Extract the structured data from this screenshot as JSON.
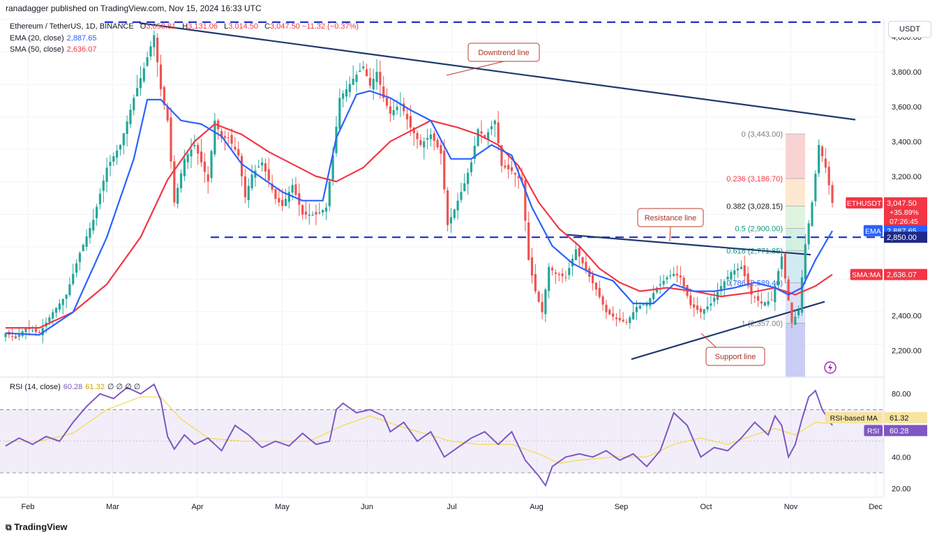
{
  "header": {
    "publisher": "ranadagger published on TradingView.com, Nov 15, 2024 16:33 UTC"
  },
  "legend": {
    "symbol": "Ethereum / TetherUS, 1D, BINANCE",
    "ohlc": {
      "o_label": "O",
      "o": "3,058.81",
      "h_label": "H",
      "h": "3,131.06",
      "l_label": "L",
      "l": "3,014.50",
      "c_label": "C",
      "c": "3,047.50",
      "change": "−11.32 (−0.37%)"
    },
    "ema_label": "EMA (20, close)",
    "ema_value": "2,887.65",
    "sma_label": "SMA (50, close)",
    "sma_value": "2,636.07",
    "rsi_label": "RSI (14, close)",
    "rsi_value": "60.28",
    "rsi_extra": "61.32",
    "rsi_symbols": "∅ ∅ ∅ ∅"
  },
  "price_axis": {
    "currency": "USDT",
    "ticks": [
      "4,000.00",
      "3,800.00",
      "3,600.00",
      "3,400.00",
      "3,200.00",
      "2,400.00",
      "2,200.00"
    ],
    "tick_values": [
      4000,
      3800,
      3600,
      3400,
      3200,
      2400,
      2200
    ]
  },
  "price_tags": [
    {
      "label": "ETHUSDT",
      "value": "3,047.50",
      "extra1": "+35.89%",
      "extra2": "07:26:45",
      "price": 3047.5,
      "color": "#f23645"
    },
    {
      "label": "EMA",
      "value": "2,887.65",
      "price": 2887.65,
      "color": "#2962ff"
    },
    {
      "label": "",
      "value": "2,850.00",
      "price": 2850,
      "color": "#1e2a87"
    },
    {
      "label": "SMA:MA",
      "value": "2,636.07",
      "price": 2636.07,
      "color": "#f23645"
    }
  ],
  "rsi_axis": {
    "ticks": [
      "80.00",
      "40.00",
      "20.00"
    ],
    "tick_values": [
      80,
      40,
      20
    ],
    "tags": [
      {
        "label": "RSI-based MA",
        "value": "61.32",
        "rsi": 61.32,
        "color": "#f7e4a0",
        "text": "#131722"
      },
      {
        "label": "RSI",
        "value": "60.28",
        "rsi": 60.28,
        "color": "#7e57c2",
        "text": "#ffffff"
      }
    ]
  },
  "time_axis": {
    "labels": [
      "Feb",
      "Mar",
      "Apr",
      "May",
      "Jun",
      "Jul",
      "Aug",
      "Sep",
      "Oct",
      "Nov",
      "Dec"
    ]
  },
  "annotations": {
    "downtrend": "Downtrend line",
    "resistance": "Resistance line",
    "support": "Support line"
  },
  "fib": [
    {
      "ratio": "0",
      "price": 3443.0,
      "text": "0 (3,443.00)"
    },
    {
      "ratio": "0.236",
      "price": 3186.7,
      "text": "0.236 (3,186.70)"
    },
    {
      "ratio": "0.382",
      "price": 3028.15,
      "text": "0.382 (3,028.15)"
    },
    {
      "ratio": "0.5",
      "price": 2900.0,
      "text": "0.5 (2,900.00)"
    },
    {
      "ratio": "0.618",
      "price": 2771.85,
      "text": "0.618 (2,771.85)"
    },
    {
      "ratio": "0.786",
      "price": 2589.4,
      "text": "0.786 (2,589.40)"
    },
    {
      "ratio": "1",
      "price": 2357.0,
      "text": "1 (2,357.00)"
    }
  ],
  "brand": "TradingView",
  "colors": {
    "up": "#26a69a",
    "down": "#ef5350",
    "ema": "#2962ff",
    "sma": "#f23645",
    "rsi": "#7e57c2",
    "rsi_ma": "#f5d94a",
    "trend": "#1e3a6e",
    "level": "#1e2acc"
  },
  "chart_data": {
    "type": "candlestick",
    "title": "Ethereum / TetherUS, 1D, BINANCE",
    "y_range": [
      2050,
      4100
    ],
    "rsi_range": [
      15,
      90
    ],
    "months": [
      "Feb",
      "Mar",
      "Apr",
      "May",
      "Jun",
      "Jul",
      "Aug",
      "Sep",
      "Oct",
      "Nov",
      "Dec"
    ],
    "price_anchors": [
      [
        0,
        2300
      ],
      [
        3,
        2270
      ],
      [
        6,
        2330
      ],
      [
        10,
        2300
      ],
      [
        14,
        2420
      ],
      [
        18,
        2520
      ],
      [
        22,
        2760
      ],
      [
        26,
        2950
      ],
      [
        30,
        3250
      ],
      [
        34,
        3380
      ],
      [
        38,
        3650
      ],
      [
        41,
        3820
      ],
      [
        44,
        4010
      ],
      [
        46,
        3700
      ],
      [
        48,
        3520
      ],
      [
        50,
        3050
      ],
      [
        53,
        3300
      ],
      [
        56,
        3380
      ],
      [
        58,
        3280
      ],
      [
        60,
        3170
      ],
      [
        62,
        3520
      ],
      [
        64,
        3420
      ],
      [
        66,
        3420
      ],
      [
        69,
        3320
      ],
      [
        71,
        3080
      ],
      [
        73,
        3210
      ],
      [
        76,
        3280
      ],
      [
        80,
        3070
      ],
      [
        82,
        3030
      ],
      [
        85,
        3150
      ],
      [
        88,
        2980
      ],
      [
        92,
        2980
      ],
      [
        95,
        3020
      ],
      [
        97,
        3320
      ],
      [
        99,
        3650
      ],
      [
        101,
        3700
      ],
      [
        103,
        3760
      ],
      [
        106,
        3830
      ],
      [
        108,
        3720
      ],
      [
        110,
        3800
      ],
      [
        112,
        3650
      ],
      [
        114,
        3560
      ],
      [
        117,
        3620
      ],
      [
        120,
        3480
      ],
      [
        123,
        3380
      ],
      [
        126,
        3440
      ],
      [
        129,
        3330
      ],
      [
        131,
        2920
      ],
      [
        133,
        3010
      ],
      [
        136,
        3160
      ],
      [
        138,
        3280
      ],
      [
        140,
        3470
      ],
      [
        142,
        3420
      ],
      [
        145,
        3520
      ],
      [
        147,
        3260
      ],
      [
        150,
        3230
      ],
      [
        153,
        3170
      ],
      [
        155,
        2720
      ],
      [
        157,
        2540
      ],
      [
        159,
        2420
      ],
      [
        161,
        2680
      ],
      [
        163,
        2640
      ],
      [
        166,
        2620
      ],
      [
        169,
        2780
      ],
      [
        172,
        2660
      ],
      [
        175,
        2550
      ],
      [
        178,
        2420
      ],
      [
        181,
        2380
      ],
      [
        184,
        2360
      ],
      [
        187,
        2450
      ],
      [
        190,
        2470
      ],
      [
        193,
        2560
      ],
      [
        196,
        2620
      ],
      [
        198,
        2640
      ],
      [
        200,
        2620
      ],
      [
        203,
        2460
      ],
      [
        206,
        2420
      ],
      [
        209,
        2470
      ],
      [
        212,
        2570
      ],
      [
        215,
        2650
      ],
      [
        218,
        2680
      ],
      [
        221,
        2520
      ],
      [
        224,
        2470
      ],
      [
        227,
        2490
      ],
      [
        230,
        2740
      ],
      [
        233,
        2360
      ],
      [
        235,
        2430
      ],
      [
        237,
        2810
      ],
      [
        239,
        3050
      ],
      [
        241,
        3380
      ],
      [
        243,
        3250
      ],
      [
        245,
        3047
      ]
    ],
    "ema_anchors": [
      [
        0,
        2300
      ],
      [
        10,
        2290
      ],
      [
        20,
        2420
      ],
      [
        30,
        2850
      ],
      [
        38,
        3300
      ],
      [
        42,
        3640
      ],
      [
        46,
        3640
      ],
      [
        52,
        3520
      ],
      [
        58,
        3500
      ],
      [
        64,
        3430
      ],
      [
        70,
        3270
      ],
      [
        76,
        3190
      ],
      [
        82,
        3110
      ],
      [
        88,
        3060
      ],
      [
        94,
        3060
      ],
      [
        98,
        3420
      ],
      [
        104,
        3670
      ],
      [
        108,
        3690
      ],
      [
        114,
        3650
      ],
      [
        120,
        3580
      ],
      [
        126,
        3520
      ],
      [
        132,
        3300
      ],
      [
        138,
        3300
      ],
      [
        144,
        3380
      ],
      [
        150,
        3320
      ],
      [
        156,
        3020
      ],
      [
        162,
        2800
      ],
      [
        168,
        2700
      ],
      [
        174,
        2640
      ],
      [
        180,
        2600
      ],
      [
        186,
        2470
      ],
      [
        192,
        2470
      ],
      [
        198,
        2580
      ],
      [
        204,
        2540
      ],
      [
        210,
        2540
      ],
      [
        216,
        2560
      ],
      [
        222,
        2590
      ],
      [
        228,
        2560
      ],
      [
        232,
        2520
      ],
      [
        236,
        2560
      ],
      [
        240,
        2720
      ],
      [
        245,
        2887
      ]
    ],
    "sma_anchors": [
      [
        0,
        2330
      ],
      [
        10,
        2330
      ],
      [
        20,
        2420
      ],
      [
        30,
        2580
      ],
      [
        40,
        2850
      ],
      [
        48,
        3180
      ],
      [
        56,
        3400
      ],
      [
        62,
        3500
      ],
      [
        70,
        3440
      ],
      [
        78,
        3340
      ],
      [
        86,
        3260
      ],
      [
        92,
        3200
      ],
      [
        98,
        3170
      ],
      [
        106,
        3250
      ],
      [
        114,
        3400
      ],
      [
        120,
        3460
      ],
      [
        126,
        3520
      ],
      [
        134,
        3480
      ],
      [
        140,
        3440
      ],
      [
        146,
        3380
      ],
      [
        152,
        3260
      ],
      [
        158,
        3050
      ],
      [
        164,
        2900
      ],
      [
        170,
        2800
      ],
      [
        176,
        2670
      ],
      [
        182,
        2590
      ],
      [
        188,
        2540
      ],
      [
        196,
        2560
      ],
      [
        204,
        2540
      ],
      [
        212,
        2510
      ],
      [
        220,
        2530
      ],
      [
        228,
        2560
      ],
      [
        234,
        2520
      ],
      [
        240,
        2570
      ],
      [
        245,
        2636
      ]
    ],
    "rsi_anchors": [
      [
        0,
        47
      ],
      [
        4,
        52
      ],
      [
        8,
        48
      ],
      [
        12,
        53
      ],
      [
        16,
        50
      ],
      [
        20,
        62
      ],
      [
        24,
        72
      ],
      [
        28,
        80
      ],
      [
        32,
        77
      ],
      [
        36,
        84
      ],
      [
        40,
        80
      ],
      [
        44,
        86
      ],
      [
        46,
        76
      ],
      [
        48,
        53
      ],
      [
        50,
        45
      ],
      [
        53,
        54
      ],
      [
        56,
        48
      ],
      [
        60,
        52
      ],
      [
        64,
        44
      ],
      [
        68,
        60
      ],
      [
        72,
        54
      ],
      [
        76,
        46
      ],
      [
        80,
        50
      ],
      [
        84,
        47
      ],
      [
        88,
        55
      ],
      [
        92,
        48
      ],
      [
        96,
        50
      ],
      [
        98,
        70
      ],
      [
        100,
        74
      ],
      [
        104,
        68
      ],
      [
        108,
        70
      ],
      [
        112,
        66
      ],
      [
        114,
        56
      ],
      [
        118,
        62
      ],
      [
        122,
        50
      ],
      [
        126,
        56
      ],
      [
        130,
        40
      ],
      [
        134,
        46
      ],
      [
        138,
        52
      ],
      [
        142,
        56
      ],
      [
        146,
        48
      ],
      [
        150,
        56
      ],
      [
        154,
        38
      ],
      [
        158,
        28
      ],
      [
        160,
        22
      ],
      [
        162,
        34
      ],
      [
        166,
        40
      ],
      [
        170,
        42
      ],
      [
        174,
        40
      ],
      [
        178,
        44
      ],
      [
        182,
        38
      ],
      [
        186,
        42
      ],
      [
        190,
        34
      ],
      [
        194,
        44
      ],
      [
        198,
        68
      ],
      [
        202,
        60
      ],
      [
        206,
        40
      ],
      [
        210,
        46
      ],
      [
        214,
        44
      ],
      [
        218,
        52
      ],
      [
        222,
        62
      ],
      [
        226,
        54
      ],
      [
        228,
        66
      ],
      [
        230,
        60
      ],
      [
        232,
        40
      ],
      [
        234,
        48
      ],
      [
        236,
        64
      ],
      [
        238,
        78
      ],
      [
        240,
        82
      ],
      [
        242,
        70
      ],
      [
        245,
        60
      ]
    ],
    "rsi_ma_anchors": [
      [
        0,
        50
      ],
      [
        10,
        50
      ],
      [
        20,
        55
      ],
      [
        30,
        70
      ],
      [
        40,
        78
      ],
      [
        46,
        78
      ],
      [
        52,
        64
      ],
      [
        60,
        52
      ],
      [
        70,
        50
      ],
      [
        80,
        50
      ],
      [
        90,
        50
      ],
      [
        100,
        60
      ],
      [
        108,
        66
      ],
      [
        116,
        60
      ],
      [
        124,
        55
      ],
      [
        132,
        50
      ],
      [
        140,
        48
      ],
      [
        150,
        48
      ],
      [
        158,
        42
      ],
      [
        164,
        36
      ],
      [
        170,
        38
      ],
      [
        180,
        40
      ],
      [
        190,
        40
      ],
      [
        198,
        48
      ],
      [
        206,
        52
      ],
      [
        214,
        48
      ],
      [
        222,
        54
      ],
      [
        228,
        58
      ],
      [
        234,
        54
      ],
      [
        240,
        62
      ],
      [
        245,
        61
      ]
    ]
  }
}
